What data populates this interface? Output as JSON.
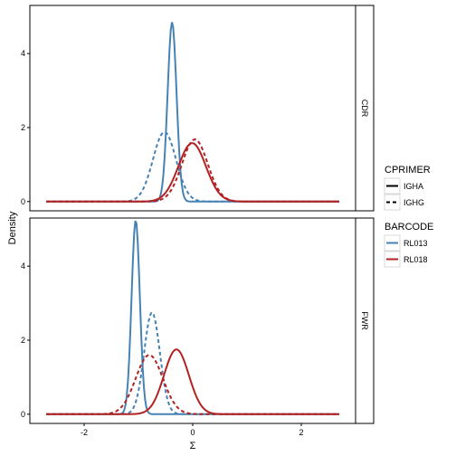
{
  "chart_data": {
    "type": "line",
    "xlabel": "Σ",
    "ylabel": "Density",
    "xlim": [
      -3.0,
      3.0
    ],
    "ylim": [
      -0.25,
      5.3
    ],
    "x_ticks": [
      -2,
      0,
      2
    ],
    "y_ticks": [
      0,
      2,
      4
    ],
    "grid": false,
    "legend_placement": "right",
    "legends": [
      {
        "title": "CPRIMER",
        "entries": [
          {
            "label": "IGHA",
            "linetype": "solid"
          },
          {
            "label": "IGHG",
            "linetype": "dashed"
          }
        ]
      },
      {
        "title": "BARCODE",
        "entries": [
          {
            "label": "RL013",
            "color": "#4682B4"
          },
          {
            "label": "RL018",
            "color": "#B22222"
          }
        ]
      }
    ],
    "panels": [
      {
        "label": "CDR",
        "series": [
          {
            "barcode": "RL013",
            "cprimer": "IGHA",
            "mean": -0.38,
            "peak": 4.85
          },
          {
            "barcode": "RL013",
            "cprimer": "IGHG",
            "mean": -0.52,
            "peak": 1.88
          },
          {
            "barcode": "RL018",
            "cprimer": "IGHA",
            "mean": -0.01,
            "peak": 1.58
          },
          {
            "barcode": "RL018",
            "cprimer": "IGHG",
            "mean": 0.04,
            "peak": 1.68
          }
        ]
      },
      {
        "label": "FWR",
        "series": [
          {
            "barcode": "RL013",
            "cprimer": "IGHA",
            "mean": -1.05,
            "peak": 5.25
          },
          {
            "barcode": "RL013",
            "cprimer": "IGHG",
            "mean": -0.75,
            "peak": 2.75
          },
          {
            "barcode": "RL018",
            "cprimer": "IGHA",
            "mean": -0.3,
            "peak": 1.75
          },
          {
            "barcode": "RL018",
            "cprimer": "IGHG",
            "mean": -0.8,
            "peak": 1.6
          }
        ]
      }
    ]
  }
}
